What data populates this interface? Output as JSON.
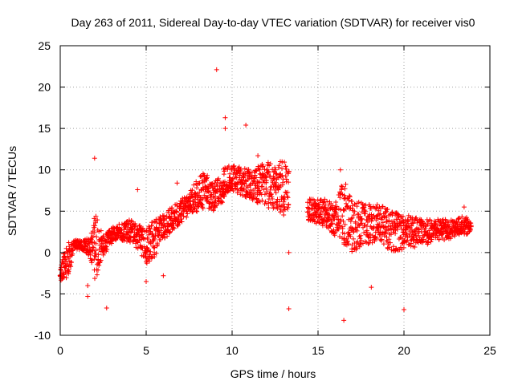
{
  "chart_data": {
    "type": "scatter",
    "title": "Day 263 of 2011, Sidereal Day-to-day VTEC variation (SDTVAR) for receiver vis0",
    "xlabel": "GPS time / hours",
    "ylabel": "SDTVAR / TECUs",
    "xlim": [
      0,
      25
    ],
    "ylim": [
      -10,
      25
    ],
    "xticks": [
      0,
      5,
      10,
      15,
      20,
      25
    ],
    "yticks": [
      -10,
      -5,
      0,
      5,
      10,
      15,
      20,
      25
    ],
    "grid": true,
    "legend": "none",
    "colors": {
      "series": "#ff0000",
      "grid": "#a0a0a0",
      "axis": "#000000"
    },
    "series": [
      {
        "name": "SDTVAR",
        "marker": "plus",
        "band": [
          [
            0.0,
            -3.3,
            -2.0
          ],
          [
            0.3,
            -3.5,
            1.0
          ],
          [
            0.5,
            -3.0,
            1.2
          ],
          [
            0.8,
            0.5,
            1.5
          ],
          [
            1.4,
            0.2,
            1.5
          ],
          [
            1.8,
            -1.0,
            2.0
          ],
          [
            2.0,
            -3.5,
            5.0
          ],
          [
            2.5,
            -0.5,
            2.0
          ],
          [
            3.0,
            1.0,
            3.0
          ],
          [
            3.5,
            1.5,
            3.5
          ],
          [
            4.0,
            1.0,
            4.0
          ],
          [
            4.5,
            0.5,
            3.5
          ],
          [
            5.0,
            -1.5,
            3.0
          ],
          [
            5.5,
            -0.5,
            4.0
          ],
          [
            6.0,
            1.5,
            4.5
          ],
          [
            6.5,
            2.5,
            5.5
          ],
          [
            7.0,
            3.5,
            6.5
          ],
          [
            7.5,
            4.5,
            7.0
          ],
          [
            8.0,
            5.0,
            9.0
          ],
          [
            8.5,
            5.5,
            10.0
          ],
          [
            9.0,
            5.0,
            8.5
          ],
          [
            9.5,
            6.0,
            10.5
          ],
          [
            10.0,
            7.5,
            10.5
          ],
          [
            10.5,
            7.0,
            10.5
          ],
          [
            11.0,
            6.5,
            10.0
          ],
          [
            11.5,
            6.0,
            10.5
          ],
          [
            12.0,
            5.5,
            11.0
          ],
          [
            12.5,
            5.0,
            10.5
          ],
          [
            13.0,
            4.5,
            11.5
          ],
          [
            13.3,
            5.0,
            10.0
          ],
          [
            14.4,
            3.5,
            6.5
          ],
          [
            15.0,
            3.5,
            6.5
          ],
          [
            15.5,
            3.0,
            6.5
          ],
          [
            16.0,
            2.0,
            6.0
          ],
          [
            16.5,
            1.0,
            9.0
          ],
          [
            17.0,
            0.0,
            6.5
          ],
          [
            17.5,
            0.5,
            6.0
          ],
          [
            18.0,
            1.0,
            6.0
          ],
          [
            18.5,
            1.5,
            6.0
          ],
          [
            19.0,
            0.5,
            5.5
          ],
          [
            19.5,
            0.0,
            5.0
          ],
          [
            20.0,
            0.5,
            4.5
          ],
          [
            20.5,
            0.5,
            4.5
          ],
          [
            21.0,
            1.0,
            4.0
          ],
          [
            21.5,
            1.0,
            4.0
          ],
          [
            22.0,
            1.5,
            4.0
          ],
          [
            22.5,
            1.5,
            4.0
          ],
          [
            23.0,
            2.0,
            4.0
          ],
          [
            23.5,
            2.0,
            4.5
          ],
          [
            23.9,
            2.5,
            4.0
          ]
        ],
        "points": [
          [
            9.1,
            22.1
          ],
          [
            2.0,
            11.4
          ],
          [
            10.8,
            15.4
          ],
          [
            9.6,
            16.3
          ],
          [
            9.6,
            15.0
          ],
          [
            4.5,
            7.6
          ],
          [
            6.8,
            8.4
          ],
          [
            1.6,
            -5.3
          ],
          [
            2.7,
            -6.7
          ],
          [
            13.3,
            -6.8
          ],
          [
            13.3,
            0.0
          ],
          [
            16.5,
            -8.2
          ],
          [
            20.0,
            -6.9
          ],
          [
            6.0,
            -2.8
          ],
          [
            5.0,
            -3.5
          ],
          [
            18.1,
            -4.2
          ],
          [
            23.5,
            5.5
          ],
          [
            16.3,
            10.0
          ],
          [
            11.5,
            11.7
          ],
          [
            1.6,
            -4.0
          ],
          [
            4.8,
            1.8
          ],
          [
            7.6,
            7.5
          ]
        ]
      }
    ]
  }
}
